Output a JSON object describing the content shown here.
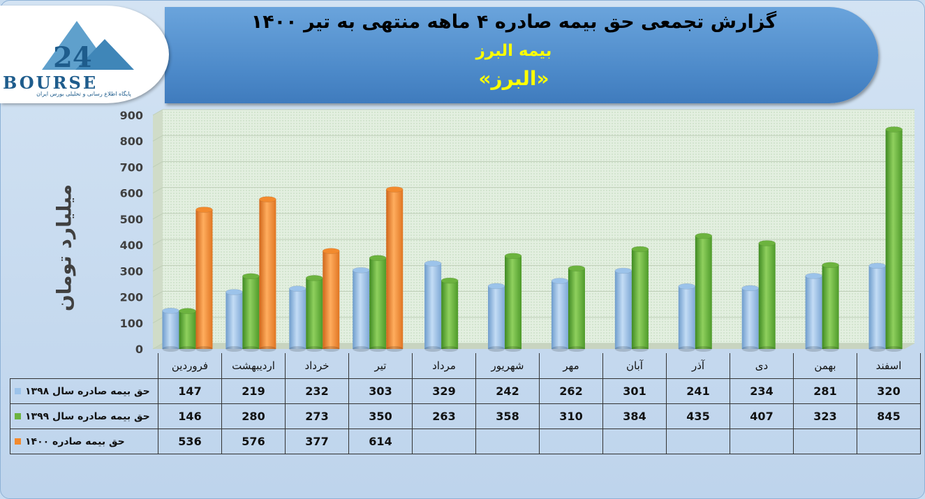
{
  "header": {
    "title": "گزارش تجمعی حق بیمه صادره ۴ ماهه منتهی به تیر ۱۴۰۰",
    "subtitle": "بیمه البرز",
    "subtitle2": "«البرز»"
  },
  "logo": {
    "text": "BOURSE",
    "tagline": "پایگاه اطلاع رسانی و تحلیلی بورس ایران",
    "mark_text": "24"
  },
  "colors": {
    "series_1398": "#9cc3ea",
    "series_1399": "#6cb33f",
    "series_1400": "#f28a2e",
    "banner": "#4b88c8",
    "title_accent": "#ffff00"
  },
  "chart_data": {
    "type": "bar",
    "ylabel": "میلیارد تومان",
    "ylim": [
      0,
      900
    ],
    "yticks": [
      0,
      100,
      200,
      300,
      400,
      500,
      600,
      700,
      800,
      900
    ],
    "grid": true,
    "legend": "table-left",
    "categories": [
      "فروردین",
      "اردیبهشت",
      "خرداد",
      "تیر",
      "مرداد",
      "شهریور",
      "مهر",
      "آبان",
      "آذر",
      "دی",
      "بهمن",
      "اسفند"
    ],
    "series": [
      {
        "name": "حق بیمه صادره سال ۱۳۹۸",
        "values": [
          147,
          219,
          232,
          303,
          329,
          242,
          262,
          301,
          241,
          234,
          281,
          320
        ]
      },
      {
        "name": "حق بیمه صادره سال ۱۳۹۹",
        "values": [
          146,
          280,
          273,
          350,
          263,
          358,
          310,
          384,
          435,
          407,
          323,
          845
        ]
      },
      {
        "name": "حق بیمه صادره ۱۴۰۰",
        "values": [
          536,
          576,
          377,
          614,
          null,
          null,
          null,
          null,
          null,
          null,
          null,
          null
        ]
      }
    ]
  }
}
